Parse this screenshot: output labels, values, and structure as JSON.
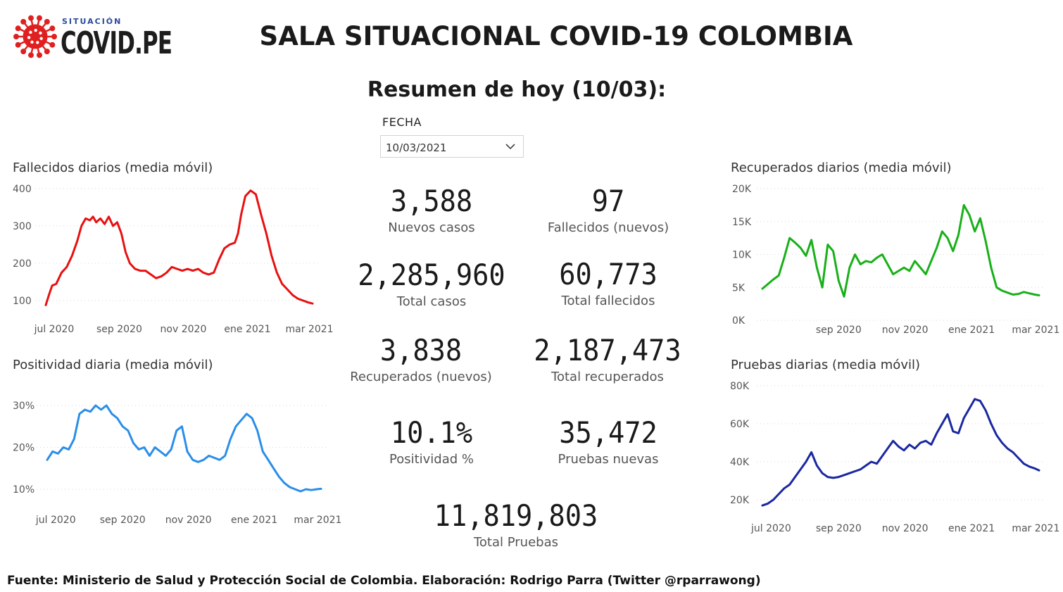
{
  "logo": {
    "small_text": "SITUACIÓN",
    "big_text": "COVID.PE",
    "icon": "virus-icon",
    "color": "#e02020"
  },
  "title": "SALA SITUACIONAL COVID-19 COLOMBIA",
  "subtitle": "Resumen de hoy (10/03):",
  "date_filter": {
    "label": "FECHA",
    "value": "10/03/2021",
    "icon": "chevron-down-icon"
  },
  "kpis": {
    "nuevos_casos": {
      "value": "3,588",
      "label": "Nuevos casos"
    },
    "fallecidos_nuevos": {
      "value": "97",
      "label": "Fallecidos (nuevos)"
    },
    "total_casos": {
      "value": "2,285,960",
      "label": "Total casos"
    },
    "total_fallecidos": {
      "value": "60,773",
      "label": "Total fallecidos"
    },
    "recuperados_nuevos": {
      "value": "3,838",
      "label": "Recuperados (nuevos)"
    },
    "total_recuperados": {
      "value": "2,187,473",
      "label": "Total recuperados"
    },
    "positividad": {
      "value": "10.1%",
      "label": "Positividad %"
    },
    "pruebas_nuevas": {
      "value": "35,472",
      "label": "Pruebas nuevas"
    },
    "total_pruebas": {
      "value": "11,819,803",
      "label": "Total Pruebas"
    }
  },
  "footer": "Fuente: Ministerio de Salud y Protección Social de Colombia. Elaboración: Rodrigo Parra (Twitter @rparrawong)",
  "chart_data": [
    {
      "id": "fallecidos",
      "type": "line",
      "title": "Fallecidos diarios (media móvil)",
      "color": "#e81010",
      "xlabel": "",
      "ylabel": "",
      "x_range": [
        0,
        254
      ],
      "x_ticks": [
        {
          "label": "jul 2020",
          "x": 8
        },
        {
          "label": "sep 2020",
          "x": 70
        },
        {
          "label": "nov 2020",
          "x": 131
        },
        {
          "label": "ene 2021",
          "x": 192
        },
        {
          "label": "mar 2021",
          "x": 251
        }
      ],
      "y_ticks": [
        {
          "label": "400",
          "v": 400
        },
        {
          "label": "300",
          "v": 300
        },
        {
          "label": "200",
          "v": 200
        },
        {
          "label": "100",
          "v": 100
        }
      ],
      "ylim": [
        100,
        400
      ],
      "grid": true,
      "x": [
        0,
        3,
        6,
        10,
        15,
        20,
        25,
        30,
        34,
        38,
        42,
        45,
        48,
        52,
        56,
        60,
        64,
        68,
        72,
        76,
        80,
        85,
        90,
        95,
        100,
        105,
        110,
        115,
        120,
        125,
        130,
        135,
        140,
        145,
        150,
        155,
        160,
        165,
        170,
        175,
        180,
        183,
        186,
        190,
        195,
        200,
        205,
        210,
        215,
        220,
        225,
        230,
        235,
        240,
        245,
        250,
        254
      ],
      "y": [
        88,
        115,
        140,
        145,
        175,
        190,
        220,
        260,
        300,
        320,
        315,
        325,
        310,
        320,
        305,
        325,
        300,
        310,
        280,
        230,
        200,
        185,
        180,
        180,
        170,
        160,
        165,
        175,
        190,
        185,
        180,
        185,
        180,
        185,
        175,
        170,
        175,
        210,
        240,
        250,
        255,
        280,
        330,
        380,
        395,
        385,
        330,
        280,
        220,
        175,
        145,
        130,
        115,
        105,
        100,
        95,
        92
      ]
    },
    {
      "id": "positividad",
      "type": "line",
      "title": "Positividad diaria (media móvil)",
      "color": "#2a8ee8",
      "xlabel": "",
      "ylabel": "",
      "x_range": [
        0,
        254
      ],
      "x_ticks": [
        {
          "label": "jul 2020",
          "x": 8
        },
        {
          "label": "sep 2020",
          "x": 70
        },
        {
          "label": "nov 2020",
          "x": 131
        },
        {
          "label": "ene 2021",
          "x": 192
        },
        {
          "label": "mar 2021",
          "x": 251
        }
      ],
      "y_ticks": [
        {
          "label": "30%",
          "v": 30
        },
        {
          "label": "20%",
          "v": 20
        },
        {
          "label": "10%",
          "v": 10
        }
      ],
      "ylim": [
        10,
        30
      ],
      "grid": true,
      "x": [
        0,
        5,
        10,
        15,
        20,
        25,
        30,
        35,
        40,
        45,
        50,
        55,
        60,
        65,
        70,
        75,
        80,
        85,
        90,
        95,
        100,
        105,
        110,
        115,
        120,
        125,
        130,
        135,
        140,
        145,
        150,
        155,
        160,
        165,
        170,
        175,
        180,
        185,
        190,
        195,
        200,
        205,
        210,
        215,
        220,
        225,
        230,
        235,
        240,
        245,
        250,
        254
      ],
      "y": [
        17,
        19,
        18.5,
        20,
        19.5,
        22,
        28,
        29,
        28.5,
        30,
        29,
        30,
        28,
        27,
        25,
        24,
        21,
        19.5,
        20,
        18,
        20,
        19,
        18,
        19.5,
        24,
        25,
        19,
        17,
        16.5,
        17,
        18,
        17.5,
        17,
        18,
        22,
        25,
        26.5,
        28,
        27,
        24,
        19,
        17,
        15,
        13,
        11.5,
        10.5,
        10,
        9.5,
        10,
        9.8,
        10,
        10.1
      ]
    },
    {
      "id": "recuperados",
      "type": "line",
      "title": "Recuperados diarios (media móvil)",
      "color": "#18b018",
      "xlabel": "",
      "ylabel": "",
      "x_range": [
        0,
        254
      ],
      "x_ticks": [
        {
          "label": "sep 2020",
          "x": 70
        },
        {
          "label": "nov 2020",
          "x": 131
        },
        {
          "label": "ene 2021",
          "x": 192
        },
        {
          "label": "mar 2021",
          "x": 251
        }
      ],
      "y_ticks": [
        {
          "label": "20K",
          "v": 20000
        },
        {
          "label": "15K",
          "v": 15000
        },
        {
          "label": "10K",
          "v": 10000
        },
        {
          "label": "5K",
          "v": 5000
        },
        {
          "label": "0K",
          "v": 0
        }
      ],
      "ylim": [
        0,
        20000
      ],
      "grid": true,
      "x": [
        0,
        5,
        10,
        15,
        20,
        25,
        30,
        35,
        40,
        45,
        50,
        55,
        60,
        65,
        70,
        75,
        80,
        85,
        90,
        95,
        100,
        105,
        110,
        115,
        120,
        125,
        130,
        135,
        140,
        145,
        150,
        155,
        160,
        165,
        170,
        175,
        180,
        185,
        190,
        195,
        200,
        205,
        210,
        215,
        220,
        225,
        230,
        235,
        240,
        245,
        250,
        254
      ],
      "y": [
        4800,
        5500,
        6200,
        6800,
        9500,
        12500,
        11800,
        11000,
        9800,
        12200,
        8000,
        5000,
        11500,
        10500,
        6000,
        3600,
        8000,
        10000,
        8500,
        9000,
        8800,
        9500,
        10000,
        8500,
        7000,
        7500,
        8000,
        7500,
        9000,
        8000,
        7000,
        9000,
        11000,
        13500,
        12500,
        10500,
        13000,
        17500,
        16000,
        13500,
        15500,
        12000,
        8000,
        5000,
        4500,
        4200,
        3900,
        4000,
        4300,
        4100,
        3900,
        3800
      ]
    },
    {
      "id": "pruebas",
      "type": "line",
      "title": "Pruebas diarias (media móvil)",
      "color": "#1a28a0",
      "xlabel": "",
      "ylabel": "",
      "x_range": [
        0,
        254
      ],
      "x_ticks": [
        {
          "label": "jul 2020",
          "x": 8
        },
        {
          "label": "sep 2020",
          "x": 70
        },
        {
          "label": "nov 2020",
          "x": 131
        },
        {
          "label": "ene 2021",
          "x": 192
        },
        {
          "label": "mar 2021",
          "x": 251
        }
      ],
      "y_ticks": [
        {
          "label": "80K",
          "v": 80000
        },
        {
          "label": "60K",
          "v": 60000
        },
        {
          "label": "40K",
          "v": 40000
        },
        {
          "label": "20K",
          "v": 20000
        }
      ],
      "ylim": [
        20000,
        80000
      ],
      "grid": true,
      "x": [
        0,
        5,
        10,
        15,
        20,
        25,
        30,
        35,
        40,
        45,
        50,
        55,
        60,
        65,
        70,
        75,
        80,
        85,
        90,
        95,
        100,
        105,
        110,
        115,
        120,
        125,
        130,
        135,
        140,
        145,
        150,
        155,
        160,
        165,
        170,
        175,
        180,
        185,
        190,
        195,
        200,
        205,
        210,
        215,
        220,
        225,
        230,
        235,
        240,
        245,
        250,
        254
      ],
      "y": [
        17000,
        18000,
        20000,
        23000,
        26000,
        28000,
        32000,
        36000,
        40000,
        45000,
        38000,
        34000,
        32000,
        31500,
        32000,
        33000,
        34000,
        35000,
        36000,
        38000,
        40000,
        39000,
        43000,
        47000,
        51000,
        48000,
        46000,
        49000,
        47000,
        50000,
        51000,
        49000,
        55000,
        60000,
        65000,
        56000,
        55000,
        63000,
        68000,
        73000,
        72000,
        67000,
        60000,
        54000,
        50000,
        47000,
        45000,
        42000,
        39000,
        37500,
        36500,
        35500
      ]
    }
  ]
}
